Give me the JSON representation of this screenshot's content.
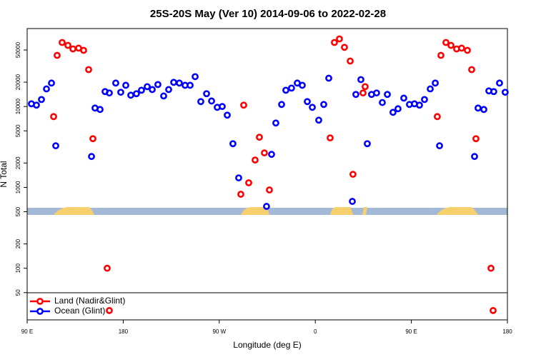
{
  "chart_data": {
    "type": "scatter",
    "title": "25S-20S May (Ver 10)   2014-09-06 to 2022-02-28",
    "x_label": "Longitude (deg E)",
    "y_label": "N Total",
    "xlim": [
      90,
      540
    ],
    "xticks": [
      {
        "value": 90,
        "label": "90 E"
      },
      180,
      {
        "value": 270,
        "label": "90 W"
      },
      {
        "value": 360,
        "label": "0"
      },
      {
        "value": 450,
        "label": "90 E"
      },
      {
        "value": 540,
        "label": "180"
      }
    ],
    "ylim": [
      23,
      92000
    ],
    "log_y": true,
    "yticks": [
      50,
      100,
      200,
      500,
      1000,
      2000,
      5000,
      10000,
      20000,
      50000
    ],
    "legend": "lower left",
    "series": [
      {
        "name": "Land (Nadir&Glint)",
        "color": "#ff0000",
        "x": [
          114.8,
          118.1,
          122.8,
          128.2,
          132.9,
          138.2,
          142.9,
          147.6,
          151.6,
          165.0,
          167.0,
          290.2,
          292.9,
          297.6,
          303.6,
          307.6,
          312.3,
          317.0,
          373.9,
          377.9,
          382.6,
          387.3,
          392.7,
          395.3,
          404.7,
          406.7,
          474.3,
          477.7,
          482.4,
          487.1,
          492.4,
          497.1,
          502.5,
          506.5,
          510.5,
          524.6,
          526.6
        ],
        "values": [
          7500,
          42900,
          61900,
          57000,
          51500,
          52700,
          49500,
          28600,
          4000,
          100,
          30,
          822,
          10400,
          1140,
          2180,
          4170,
          2670,
          929,
          4090,
          61900,
          68500,
          53900,
          36500,
          1450,
          14700,
          17600,
          7500,
          42900,
          61900,
          57000,
          51500,
          52700,
          49500,
          28600,
          4000,
          100,
          30
        ]
      },
      {
        "name": "Ocean (Glint)",
        "color": "#0000ff",
        "x": [
          94.0,
          98.7,
          103.4,
          108.1,
          112.8,
          116.8,
          150.3,
          153.6,
          158.3,
          163.0,
          167.0,
          173.0,
          177.7,
          182.4,
          187.1,
          192.4,
          197.1,
          202.5,
          207.2,
          212.5,
          217.9,
          222.6,
          227.3,
          232.6,
          238.0,
          242.7,
          247.4,
          252.7,
          258.1,
          262.8,
          268.1,
          272.8,
          277.5,
          282.8,
          288.2,
          314.3,
          319.0,
          323.0,
          328.4,
          332.4,
          337.7,
          343.1,
          347.8,
          352.5,
          357.2,
          363.2,
          367.9,
          372.6,
          394.7,
          398.0,
          402.7,
          408.7,
          412.7,
          417.4,
          422.8,
          427.5,
          432.8,
          437.5,
          442.9,
          448.2,
          452.9,
          457.6,
          462.3,
          467.7,
          472.4,
          476.4,
          509.2,
          512.5,
          517.9,
          522.6,
          527.2,
          532.6,
          537.9
        ],
        "values": [
          10800,
          10400,
          12200,
          16500,
          19500,
          3270,
          2410,
          9570,
          9190,
          15300,
          14700,
          19500,
          15000,
          18300,
          13800,
          14400,
          15900,
          17600,
          16200,
          18700,
          13500,
          16200,
          19900,
          19500,
          18300,
          18300,
          23400,
          11500,
          14400,
          11700,
          9770,
          10000,
          7820,
          3470,
          1310,
          582,
          2560,
          6250,
          10600,
          15900,
          16900,
          19500,
          18300,
          11500,
          9770,
          6780,
          10600,
          22400,
          671,
          14100,
          21500,
          3470,
          14100,
          14700,
          11200,
          14100,
          8470,
          9380,
          12700,
          10600,
          10800,
          10400,
          12200,
          16500,
          19500,
          3270,
          2410,
          9570,
          9190,
          15600,
          15300,
          19500,
          15000
        ]
      }
    ]
  }
}
